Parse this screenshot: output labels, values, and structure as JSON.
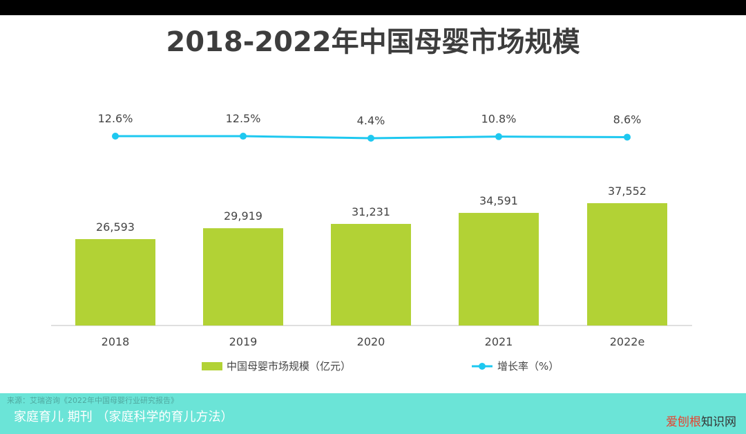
{
  "title": "2018-2022年中国母婴市场规模",
  "chart_data": {
    "type": "bar",
    "categories": [
      "2018",
      "2019",
      "2020",
      "2021",
      "2022e"
    ],
    "series": [
      {
        "name": "中国母婴市场规模（亿元）",
        "type": "bar",
        "values": [
          26593,
          29919,
          31231,
          34591,
          37552
        ],
        "labels": [
          "26,593",
          "29,919",
          "31,231",
          "34,591",
          "37,552"
        ],
        "color": "#b2d235"
      },
      {
        "name": "增长率（%）",
        "type": "line",
        "values": [
          12.6,
          12.5,
          4.4,
          10.8,
          8.6
        ],
        "labels": [
          "12.6%",
          "12.5%",
          "4.4%",
          "10.8%",
          "8.6%"
        ],
        "color": "#1ec8f0"
      }
    ],
    "legend": "bottom",
    "grid": false
  },
  "source": "来源：艾瑞咨询《2022年中国母婴行业研究报告》",
  "caption": "家庭育儿 期刊 （家庭科学的育儿方法）",
  "watermark": {
    "part1": "爱刨根",
    "part2": "知识网"
  },
  "colors": {
    "bar": "#b2d235",
    "line": "#1ec8f0",
    "caption_bg": "#66e3d6"
  }
}
